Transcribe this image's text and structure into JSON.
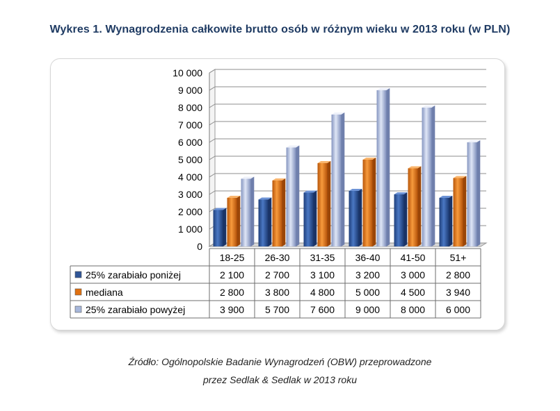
{
  "title": "Wykres 1. Wynagrodzenia całkowite brutto osób w różnym wieku w 2013 roku (w PLN)",
  "source_line1": "Źródło: Ogólnopolskie Badanie Wynagrodzeń (OBW) przeprowadzone",
  "source_line2": "przez Sedlak & Sedlak w 2013 roku",
  "colors": {
    "blue": "#2f5597",
    "orange": "#e07010",
    "lavender": "#a7b7db"
  },
  "chart_data": {
    "type": "bar",
    "title": "Wykres 1. Wynagrodzenia całkowite brutto osób w różnym wieku w 2013 roku (w PLN)",
    "categories": [
      "18-25",
      "26-30",
      "31-35",
      "36-40",
      "41-50",
      "51+"
    ],
    "series": [
      {
        "name": "25% zarabiało poniżej",
        "values": [
          2100,
          2700,
          3100,
          3200,
          3000,
          2800
        ],
        "labels": [
          "2 100",
          "2 700",
          "3 100",
          "3 200",
          "3 000",
          "2 800"
        ]
      },
      {
        "name": "mediana",
        "values": [
          2800,
          3800,
          4800,
          5000,
          4500,
          3940
        ],
        "labels": [
          "2 800",
          "3 800",
          "4 800",
          "5 000",
          "4 500",
          "3 940"
        ]
      },
      {
        "name": "25% zarabiało powyżej",
        "values": [
          3900,
          5700,
          7600,
          9000,
          8000,
          6000
        ],
        "labels": [
          "3 900",
          "5 700",
          "7 600",
          "9 000",
          "8 000",
          "6 000"
        ]
      }
    ],
    "ylim": [
      0,
      10000
    ],
    "yticks": [
      0,
      1000,
      2000,
      3000,
      4000,
      5000,
      6000,
      7000,
      8000,
      9000,
      10000
    ],
    "ytick_labels": [
      "0",
      "1 000",
      "2 000",
      "3 000",
      "4 000",
      "5 000",
      "6 000",
      "7 000",
      "8 000",
      "9 000",
      "10 000"
    ],
    "grid": true,
    "xlabel": "",
    "ylabel": "",
    "legend": "data-table"
  }
}
